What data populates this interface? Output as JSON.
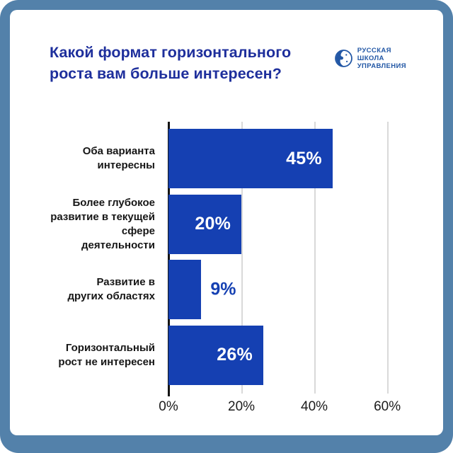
{
  "header": {
    "title": "Какой формат горизонтального\nроста вам больше интересен?",
    "logo": {
      "line1": "РУССКАЯ",
      "line2": "ШКОЛА",
      "line3": "УПРАВЛЕНИЯ"
    }
  },
  "colors": {
    "frame": "#5381aa",
    "card": "#ffffff",
    "title": "#1e2f9c",
    "bar": "#1540b2",
    "value_inside": "#ffffff",
    "value_outside": "#1540b2",
    "category_text": "#161616",
    "tick_text": "#1c1c1c",
    "gridline": "#d9d9d9",
    "axis_line": "#141414",
    "logo_blue": "#2257a5"
  },
  "chart_data": {
    "type": "bar",
    "orientation": "horizontal",
    "title": "Какой формат горизонтального роста вам больше интересен?",
    "categories": [
      "Оба варианта\nинтересны",
      "Более глубокое\nразвитие в текущей\nсфере деятельности",
      "Развитие в\nдругих областях",
      "Горизонтальный\nрост не интересен"
    ],
    "values": [
      45,
      20,
      9,
      26
    ],
    "value_labels": [
      "45%",
      "20%",
      "9%",
      "26%"
    ],
    "x_tick_values": [
      0,
      20,
      40,
      60
    ],
    "x_tick_labels": [
      "0%",
      "20%",
      "40%",
      "60%"
    ],
    "xlim": [
      0,
      66
    ],
    "grid": "vertical-gridlines-at-ticks",
    "legend": "none",
    "value_label_placement": "inside-right, outside-right when bar too short",
    "outside_label_threshold": 12
  }
}
